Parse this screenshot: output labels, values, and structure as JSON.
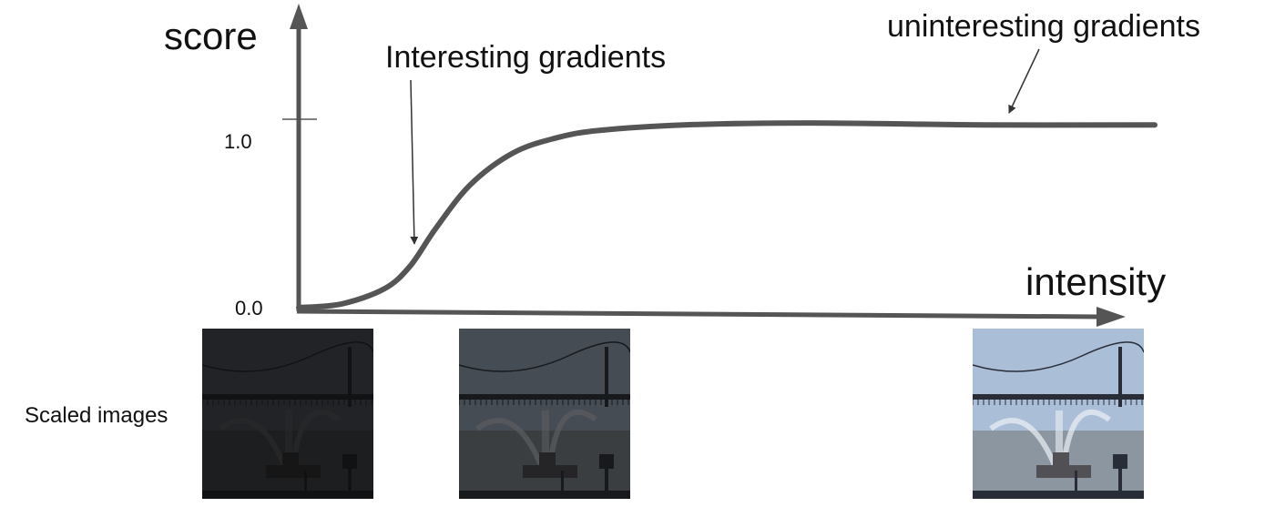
{
  "chart_data": {
    "type": "line",
    "xlabel": "intensity",
    "ylabel": "score",
    "y_ticks": [
      "1.0",
      "0.0"
    ],
    "annotations": [
      "Interesting gradients",
      "uninteresting gradients"
    ],
    "series": [
      {
        "x": [
          0.0,
          0.05,
          0.1,
          0.13,
          0.16,
          0.2,
          0.25,
          0.3,
          0.35,
          0.45,
          0.6,
          0.8,
          1.0
        ],
        "y": [
          0.0,
          0.02,
          0.1,
          0.22,
          0.42,
          0.65,
          0.82,
          0.9,
          0.94,
          0.97,
          0.98,
          0.97,
          0.97
        ]
      }
    ]
  },
  "images": {
    "row_label": "Scaled images",
    "items": [
      {
        "name": "dark",
        "brightness": 0.12
      },
      {
        "name": "mid",
        "brightness": 0.35
      },
      {
        "name": "bright",
        "brightness": 1.0
      }
    ]
  },
  "colors": {
    "curve": "#555555",
    "axis": "#555555",
    "annotation_line": "#333333"
  }
}
